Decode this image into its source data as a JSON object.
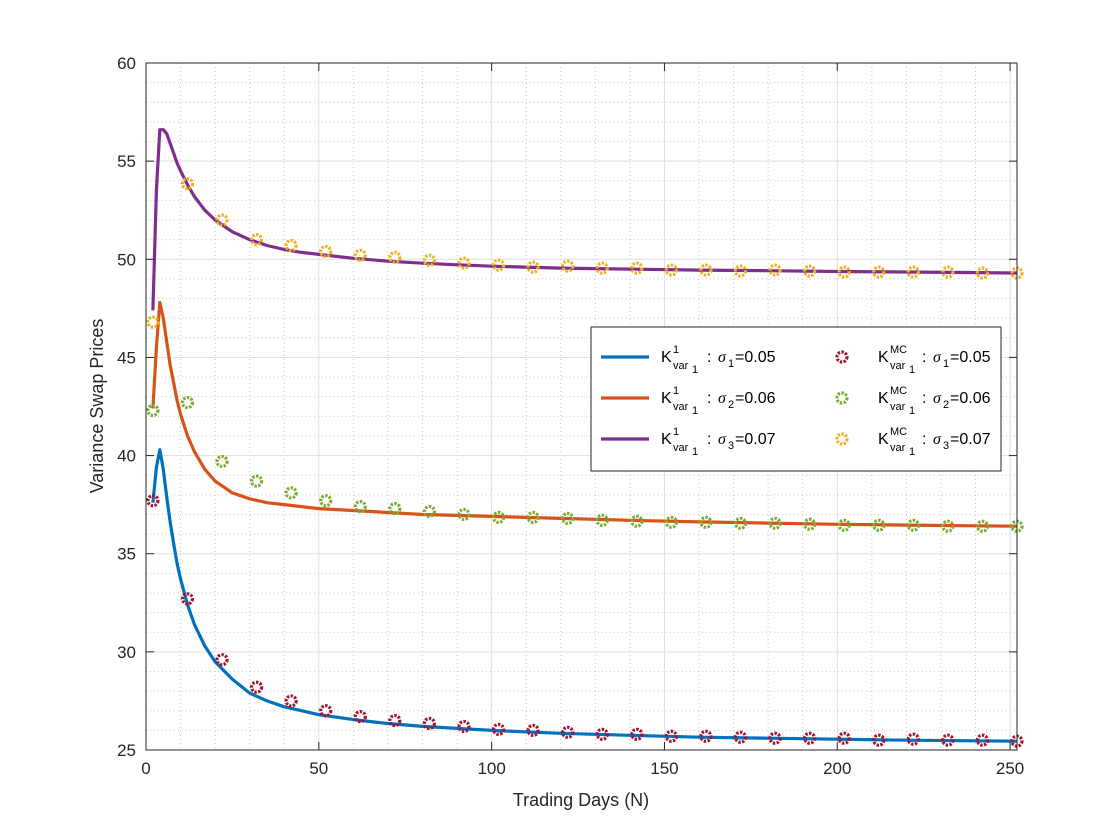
{
  "chart_data": {
    "type": "line",
    "title": "",
    "xlabel": "Trading Days (N)",
    "ylabel": "Variance Swap Prices",
    "xlim": [
      0,
      252
    ],
    "ylim": [
      25,
      60
    ],
    "xticks": [
      0,
      50,
      100,
      150,
      200,
      250
    ],
    "yticks": [
      25,
      30,
      35,
      40,
      45,
      50,
      55,
      60
    ],
    "grid": true,
    "minor_grid": true,
    "legend_position": "right-center",
    "series": [
      {
        "name": "K^1_var1 : σ1=0.05",
        "kind": "line",
        "color": "#0072BD",
        "legend": {
          "sup": "1",
          "sub": "var",
          "subsub": "1",
          "sigma_sub": "1",
          "value": "=0.05"
        },
        "x": [
          2,
          3,
          4,
          5,
          6,
          7,
          8,
          9,
          10,
          12,
          14,
          17,
          20,
          25,
          30,
          35,
          40,
          45,
          50,
          60,
          70,
          80,
          90,
          100,
          120,
          140,
          160,
          180,
          200,
          220,
          240,
          252
        ],
        "values": [
          37.6,
          39.4,
          40.3,
          39.3,
          37.9,
          36.6,
          35.5,
          34.5,
          33.7,
          32.4,
          31.4,
          30.3,
          29.5,
          28.6,
          27.9,
          27.5,
          27.2,
          27.0,
          26.8,
          26.55,
          26.35,
          26.2,
          26.1,
          26.0,
          25.85,
          25.75,
          25.65,
          25.6,
          25.55,
          25.5,
          25.47,
          25.45
        ]
      },
      {
        "name": "K^1_var1 : σ2=0.06",
        "kind": "line",
        "color": "#D95319",
        "legend": {
          "sup": "1",
          "sub": "var",
          "subsub": "1",
          "sigma_sub": "2",
          "value": "=0.06"
        },
        "x": [
          2,
          3,
          4,
          5,
          6,
          7,
          8,
          9,
          10,
          12,
          14,
          17,
          20,
          25,
          30,
          35,
          40,
          45,
          50,
          60,
          70,
          80,
          90,
          100,
          120,
          140,
          160,
          180,
          200,
          220,
          240,
          252
        ],
        "values": [
          42.4,
          45.5,
          47.8,
          47.0,
          45.8,
          44.6,
          43.7,
          42.8,
          42.1,
          41.0,
          40.2,
          39.3,
          38.7,
          38.1,
          37.8,
          37.6,
          37.5,
          37.4,
          37.3,
          37.2,
          37.1,
          37.0,
          36.95,
          36.9,
          36.8,
          36.7,
          36.62,
          36.56,
          36.5,
          36.46,
          36.42,
          36.4
        ]
      },
      {
        "name": "K^1_var1 : σ3=0.07",
        "kind": "line",
        "color": "#7E2F8E",
        "legend": {
          "sup": "1",
          "sub": "var",
          "subsub": "1",
          "sigma_sub": "3",
          "value": "=0.07"
        },
        "x": [
          2,
          3,
          4,
          5,
          6,
          7,
          8,
          9,
          10,
          12,
          14,
          17,
          20,
          25,
          30,
          35,
          40,
          45,
          50,
          60,
          70,
          80,
          90,
          100,
          120,
          140,
          160,
          180,
          200,
          220,
          240,
          252
        ],
        "values": [
          47.4,
          53.5,
          56.6,
          56.6,
          56.4,
          55.9,
          55.4,
          54.9,
          54.5,
          53.8,
          53.2,
          52.5,
          52.0,
          51.4,
          51.0,
          50.7,
          50.5,
          50.35,
          50.25,
          50.05,
          49.9,
          49.8,
          49.72,
          49.65,
          49.55,
          49.5,
          49.45,
          49.42,
          49.38,
          49.35,
          49.32,
          49.3
        ]
      },
      {
        "name": "K^MC_var1 : σ1=0.05",
        "kind": "marker",
        "color": "#A2142F",
        "legend": {
          "sup": "MC",
          "sub": "var",
          "subsub": "1",
          "sigma_sub": "1",
          "value": "=0.05"
        },
        "x": [
          2,
          12,
          22,
          32,
          42,
          52,
          62,
          72,
          82,
          92,
          102,
          112,
          122,
          132,
          142,
          152,
          162,
          172,
          182,
          192,
          202,
          212,
          222,
          232,
          242,
          252
        ],
        "values": [
          37.7,
          32.7,
          29.6,
          28.2,
          27.5,
          27.0,
          26.7,
          26.5,
          26.35,
          26.2,
          26.05,
          26.0,
          25.9,
          25.8,
          25.8,
          25.7,
          25.7,
          25.65,
          25.6,
          25.6,
          25.6,
          25.5,
          25.55,
          25.5,
          25.5,
          25.45
        ]
      },
      {
        "name": "K^MC_var1 : σ2=0.06",
        "kind": "marker",
        "color": "#77AC30",
        "legend": {
          "sup": "MC",
          "sub": "var",
          "subsub": "1",
          "sigma_sub": "2",
          "value": "=0.06"
        },
        "x": [
          2,
          12,
          22,
          32,
          42,
          52,
          62,
          72,
          82,
          92,
          102,
          112,
          122,
          132,
          142,
          152,
          162,
          172,
          182,
          192,
          202,
          212,
          222,
          232,
          242,
          252
        ],
        "values": [
          42.3,
          42.7,
          39.7,
          38.7,
          38.1,
          37.7,
          37.4,
          37.3,
          37.15,
          37.0,
          36.85,
          36.85,
          36.8,
          36.7,
          36.65,
          36.6,
          36.6,
          36.55,
          36.55,
          36.5,
          36.45,
          36.45,
          36.45,
          36.4,
          36.4,
          36.4
        ]
      },
      {
        "name": "K^MC_var1 : σ3=0.07",
        "kind": "marker",
        "color": "#EDB120",
        "legend": {
          "sup": "MC",
          "sub": "var",
          "subsub": "1",
          "sigma_sub": "3",
          "value": "=0.07"
        },
        "x": [
          2,
          12,
          22,
          32,
          42,
          52,
          62,
          72,
          82,
          92,
          102,
          112,
          122,
          132,
          142,
          152,
          162,
          172,
          182,
          192,
          202,
          212,
          222,
          232,
          242,
          252
        ],
        "values": [
          46.8,
          53.85,
          52.0,
          51.0,
          50.7,
          50.4,
          50.2,
          50.1,
          49.95,
          49.8,
          49.7,
          49.6,
          49.65,
          49.55,
          49.55,
          49.45,
          49.45,
          49.4,
          49.45,
          49.4,
          49.35,
          49.35,
          49.35,
          49.35,
          49.3,
          49.3
        ]
      }
    ]
  }
}
